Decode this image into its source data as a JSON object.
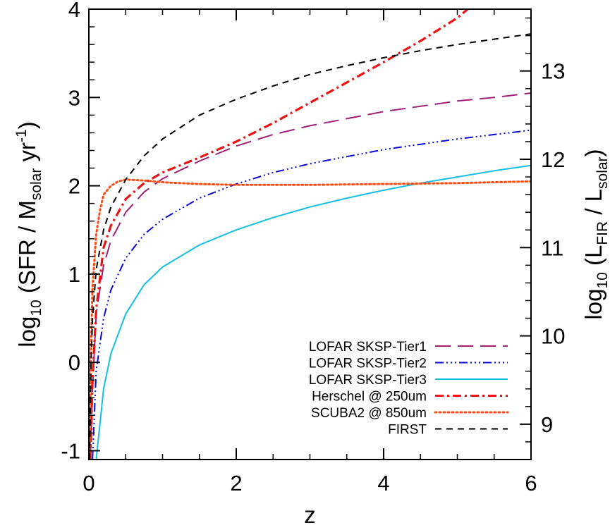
{
  "chart_data": {
    "type": "line",
    "title": "",
    "xlabel": "z",
    "ylabel": {
      "prefix": "log",
      "sub": "10",
      "main": " (SFR / M",
      "sub2": "solar",
      "mid": " yr",
      "sup": "-1",
      "suffix": ")"
    },
    "y2label": {
      "prefix": "log",
      "sub": "10",
      "open": " (L",
      "sub2": "FIR",
      "mid": " / L",
      "sub3": "solar",
      "suffix": ")"
    },
    "xlim": [
      0,
      6
    ],
    "ylim": [
      -1.1,
      4.0
    ],
    "y2lim": [
      8.6,
      13.7
    ],
    "grid": false,
    "legend_position": "bottom-right",
    "x_ticks": [
      0,
      2,
      4,
      6
    ],
    "x_tick_labels": [
      "0",
      "2",
      "4",
      "6"
    ],
    "y_ticks": [
      -1,
      0,
      1,
      2,
      3,
      4
    ],
    "y_tick_labels": [
      "-1",
      "0",
      "1",
      "2",
      "3",
      "4"
    ],
    "y2_ticks": [
      9,
      10,
      11,
      12,
      13
    ],
    "y2_tick_labels": [
      "9",
      "10",
      "11",
      "12",
      "13"
    ],
    "series": [
      {
        "name": "LOFAR SKSP-Tier1",
        "color": "#a0207a",
        "style": "longdash",
        "x": [
          0.02,
          0.05,
          0.1,
          0.2,
          0.3,
          0.5,
          0.75,
          1.0,
          1.5,
          2.0,
          2.5,
          3.0,
          3.5,
          4.0,
          4.5,
          5.0,
          5.5,
          6.0
        ],
        "y": [
          -1.1,
          -0.3,
          0.55,
          1.1,
          1.38,
          1.7,
          1.93,
          2.08,
          2.28,
          2.45,
          2.58,
          2.68,
          2.76,
          2.84,
          2.9,
          2.96,
          3.0,
          3.05
        ]
      },
      {
        "name": "LOFAR SKSP-Tier2",
        "color": "#0a0ad8",
        "style": "dashdotdotdot",
        "x": [
          0.05,
          0.1,
          0.2,
          0.3,
          0.5,
          0.75,
          1.0,
          1.5,
          2.0,
          2.5,
          3.0,
          3.5,
          4.0,
          4.5,
          5.0,
          5.5,
          6.0
        ],
        "y": [
          -1.1,
          -0.1,
          0.5,
          0.82,
          1.18,
          1.45,
          1.62,
          1.86,
          2.02,
          2.15,
          2.25,
          2.33,
          2.41,
          2.47,
          2.53,
          2.58,
          2.63
        ]
      },
      {
        "name": "LOFAR SKSP-Tier3",
        "color": "#14bfe6",
        "style": "solid",
        "x": [
          0.1,
          0.15,
          0.2,
          0.3,
          0.5,
          0.75,
          1.0,
          1.5,
          2.0,
          2.5,
          3.0,
          3.5,
          4.0,
          4.5,
          5.0,
          5.5,
          6.0
        ],
        "y": [
          -1.1,
          -0.7,
          -0.3,
          0.1,
          0.55,
          0.88,
          1.08,
          1.33,
          1.5,
          1.64,
          1.76,
          1.86,
          1.95,
          2.03,
          2.1,
          2.17,
          2.23
        ]
      },
      {
        "name": "Herschel @ 250um",
        "color": "#ee1111",
        "style": "dashdot",
        "x": [
          0.02,
          0.05,
          0.1,
          0.2,
          0.3,
          0.5,
          0.75,
          1.0,
          1.5,
          2.0,
          2.5,
          3.0,
          3.5,
          4.0,
          4.5,
          5.0,
          5.14
        ],
        "y": [
          -1.1,
          -0.2,
          0.6,
          1.3,
          1.55,
          1.85,
          2.03,
          2.15,
          2.32,
          2.5,
          2.71,
          2.94,
          3.17,
          3.4,
          3.64,
          3.9,
          4.0
        ]
      },
      {
        "name": "SCUBA2 @ 850um",
        "color": "#ff4a12",
        "style": "dotted",
        "x": [
          0.01,
          0.03,
          0.05,
          0.1,
          0.15,
          0.2,
          0.3,
          0.4,
          0.5,
          0.75,
          1.0,
          1.5,
          2.0,
          3.0,
          4.0,
          5.0,
          6.0
        ],
        "y": [
          -1.1,
          0.2,
          0.85,
          1.45,
          1.72,
          1.9,
          2.0,
          2.05,
          2.07,
          2.06,
          2.04,
          2.02,
          2.01,
          2.01,
          2.02,
          2.03,
          2.05
        ]
      },
      {
        "name": "FIRST",
        "color": "#000000",
        "style": "dash",
        "x": [
          0.01,
          0.03,
          0.05,
          0.1,
          0.2,
          0.3,
          0.5,
          0.75,
          1.0,
          1.5,
          2.0,
          2.5,
          3.0,
          3.5,
          4.0,
          4.5,
          5.0,
          5.5,
          6.0
        ],
        "y": [
          -1.1,
          0.0,
          0.5,
          1.05,
          1.5,
          1.76,
          2.07,
          2.34,
          2.53,
          2.8,
          2.98,
          3.13,
          3.26,
          3.36,
          3.45,
          3.53,
          3.6,
          3.66,
          3.72
        ]
      }
    ]
  }
}
